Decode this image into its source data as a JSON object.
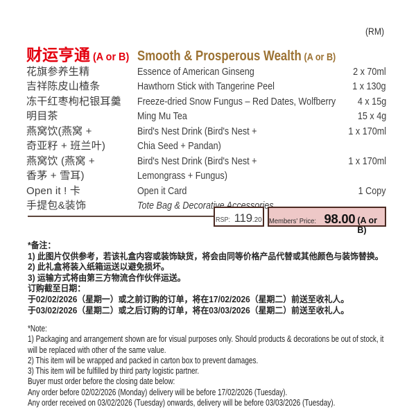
{
  "currency_note": "(RM)",
  "header": {
    "title_zh": "财运亨通",
    "title_zh_suffix": "(A or B)",
    "title_en": "Smooth & Prosperous Wealth",
    "title_en_suffix": "(A or B)"
  },
  "items": [
    {
      "zh": "花旗参养生精",
      "en": "Essence of American Ginseng",
      "qty": "2 x 70ml"
    },
    {
      "zh": "吉祥陈皮山楂条",
      "en": "Hawthorn Stick with Tangerine Peel",
      "qty": "1 x 130g"
    },
    {
      "zh": "冻干红枣枸杞银耳羹",
      "en": "Freeze-dried Snow Fungus – Red Dates, Wolfberry",
      "qty": "4 x 15g"
    },
    {
      "zh": "明目茶",
      "en": "Ming Mu Tea",
      "qty": "15 x 4g"
    },
    {
      "zh": "燕窝饮(燕窝 +",
      "en": "Bird's Nest Drink (Bird's Nest +",
      "qty": "1 x 170ml"
    },
    {
      "zh": "奇亚籽 + 班兰叶)",
      "en": "Chia Seed + Pandan)",
      "qty": ""
    },
    {
      "zh": "燕窝饮 (燕窝 +",
      "en": "Bird's Nest Drink (Bird's Nest +",
      "qty": "1 x 170ml"
    },
    {
      "zh": "香茅 + 雪耳)",
      "en": "Lemongrass + Fungus)",
      "qty": ""
    },
    {
      "zh": "Open it ! 卡",
      "en": "Open it Card",
      "qty": "1 Copy"
    },
    {
      "zh": "手提包&装饰",
      "en": "Tote Bag & Decorative Accessories",
      "qty": ""
    }
  ],
  "pricing": {
    "rsp_label": "RSP:",
    "rsp_whole": "119",
    "rsp_cents": ".20",
    "members_label": "Members' Price:",
    "members_price": "98.00",
    "members_suffix": "(A or B)"
  },
  "notes_zh": [
    "*备注：",
    "1) 此图片仅供参考，若该礼盒内容或装饰缺货，将会由同等价格产品代替或其他颜色与装饰替换。",
    "2) 此礼盒将装入纸箱运送以避免损坏。",
    "3) 运输方式将由第三方物流合作伙伴运送。",
    "订购截至日期：",
    "于02/02/2026（星期一）或之前订购的订单，将在17/02/2026（星期二）前送至收礼人。",
    "于03/02/2026（星期二）或之后订购的订单，将在03/03/2026（星期二）前送至收礼人。"
  ],
  "notes_en": [
    "*Note:",
    "1) Packaging and arrangement shown are for visual purposes only. Should products & decorations be out of stock, it",
    "will be replaced with other of the same value.",
    "2) This item will be wrapped and packed in carton box to prevent damages.",
    "3) This item will be fulfilled by third party logistic partner.",
    "Buyer must order before the closing date below:",
    "Any order before 02/02/2026 (Monday) delivery will be before 17/02/2026 (Tuesday).",
    "Any order received on 03/02/2026 (Tuesday) onwards, delivery will be before 03/03/2026 (Tuesday)."
  ],
  "colors": {
    "title_red": "#e4000f",
    "title_gold": "#9c7233",
    "body_text": "#3d3d3d",
    "box_border": "#4b2a22",
    "members_bg": "#eec8c7",
    "divider_rule": "#5c463c"
  }
}
